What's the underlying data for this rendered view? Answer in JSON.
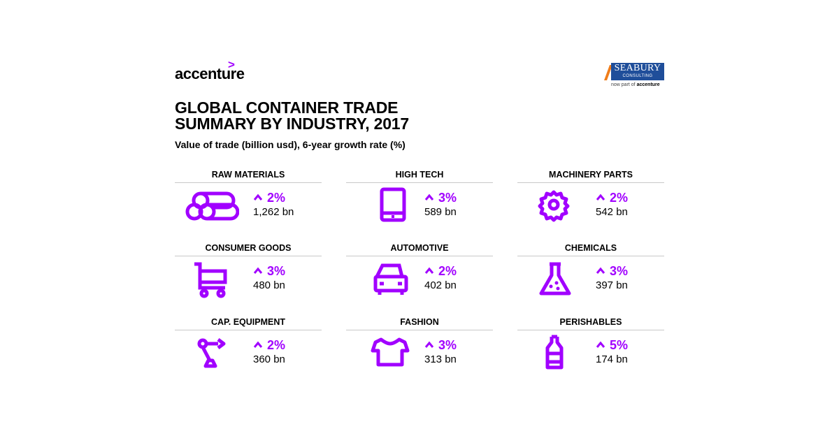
{
  "header": {
    "brand": "accenture",
    "partner_name": "SEABURY",
    "partner_sub": "CONSULTING",
    "partner_tag_prefix": "now part of",
    "partner_tag_brand": "accenture"
  },
  "title_line1": "GLOBAL CONTAINER TRADE",
  "title_line2": "SUMMARY BY INDUSTRY, 2017",
  "subtitle": "Value of trade (billion usd), 6-year growth rate (%)",
  "colors": {
    "accent": "#a100ff",
    "partner_blue": "#1f4e9a",
    "partner_orange": "#f07d1a"
  },
  "industries": [
    {
      "name": "RAW MATERIALS",
      "growth": "2%",
      "value": "1,262 bn",
      "icon": "logs-icon"
    },
    {
      "name": "HIGH TECH",
      "growth": "3%",
      "value": "589 bn",
      "icon": "tablet-icon"
    },
    {
      "name": "MACHINERY PARTS",
      "growth": "2%",
      "value": "542 bn",
      "icon": "gear-icon"
    },
    {
      "name": "CONSUMER GOODS",
      "growth": "3%",
      "value": "480 bn",
      "icon": "shopping-cart-icon"
    },
    {
      "name": "AUTOMOTIVE",
      "growth": "2%",
      "value": "402 bn",
      "icon": "car-icon"
    },
    {
      "name": "CHEMICALS",
      "growth": "3%",
      "value": "397 bn",
      "icon": "flask-icon"
    },
    {
      "name": "CAP. EQUIPMENT",
      "growth": "2%",
      "value": "360 bn",
      "icon": "robot-arm-icon"
    },
    {
      "name": "FASHION",
      "growth": "3%",
      "value": "313 bn",
      "icon": "t-shirt-icon"
    },
    {
      "name": "PERISHABLES",
      "growth": "5%",
      "value": "174 bn",
      "icon": "bottle-icon"
    }
  ]
}
